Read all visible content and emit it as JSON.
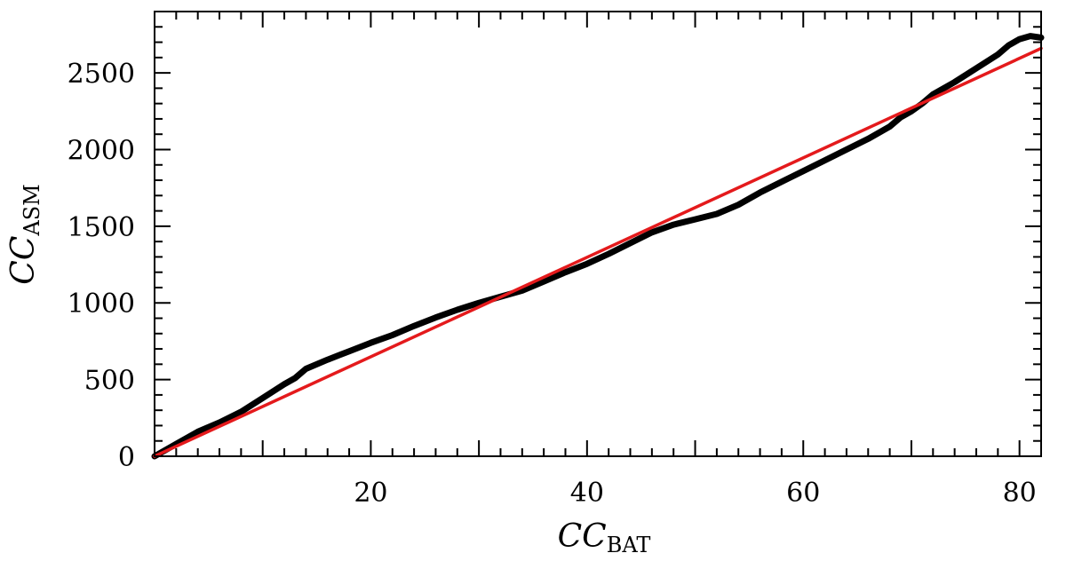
{
  "chart_data": {
    "type": "line",
    "title": "",
    "xlabel_main": "CC",
    "xlabel_sub": "BAT",
    "ylabel_main": "CC",
    "ylabel_sub": "ASM",
    "xlim": [
      0,
      82
    ],
    "ylim": [
      0,
      2900
    ],
    "x_ticks": [
      20,
      40,
      60,
      80
    ],
    "y_ticks": [
      0,
      500,
      1000,
      1500,
      2000,
      2500
    ],
    "grid": false,
    "legend": "none",
    "series": [
      {
        "color": "#000000",
        "style": "data",
        "x": [
          0,
          2,
          4,
          6,
          8,
          10,
          12,
          13,
          13.5,
          14,
          16,
          18,
          20,
          22,
          24,
          26,
          28,
          30,
          32,
          34,
          36,
          38,
          40,
          42,
          44,
          46,
          48,
          50,
          52,
          54,
          56,
          58,
          60,
          62,
          64,
          66,
          68,
          69,
          70,
          71,
          72,
          74,
          76,
          78,
          79,
          80,
          81,
          82
        ],
        "y": [
          0,
          80,
          160,
          220,
          290,
          380,
          470,
          510,
          540,
          570,
          630,
          685,
          740,
          790,
          850,
          905,
          955,
          1000,
          1040,
          1080,
          1140,
          1200,
          1255,
          1320,
          1390,
          1460,
          1510,
          1545,
          1580,
          1640,
          1720,
          1790,
          1860,
          1930,
          2000,
          2070,
          2150,
          2210,
          2250,
          2300,
          2360,
          2440,
          2530,
          2620,
          2680,
          2720,
          2740,
          2730
        ]
      },
      {
        "color": "#e41a1c",
        "style": "fit",
        "x": [
          0,
          82
        ],
        "y": [
          0,
          2660
        ]
      }
    ]
  }
}
